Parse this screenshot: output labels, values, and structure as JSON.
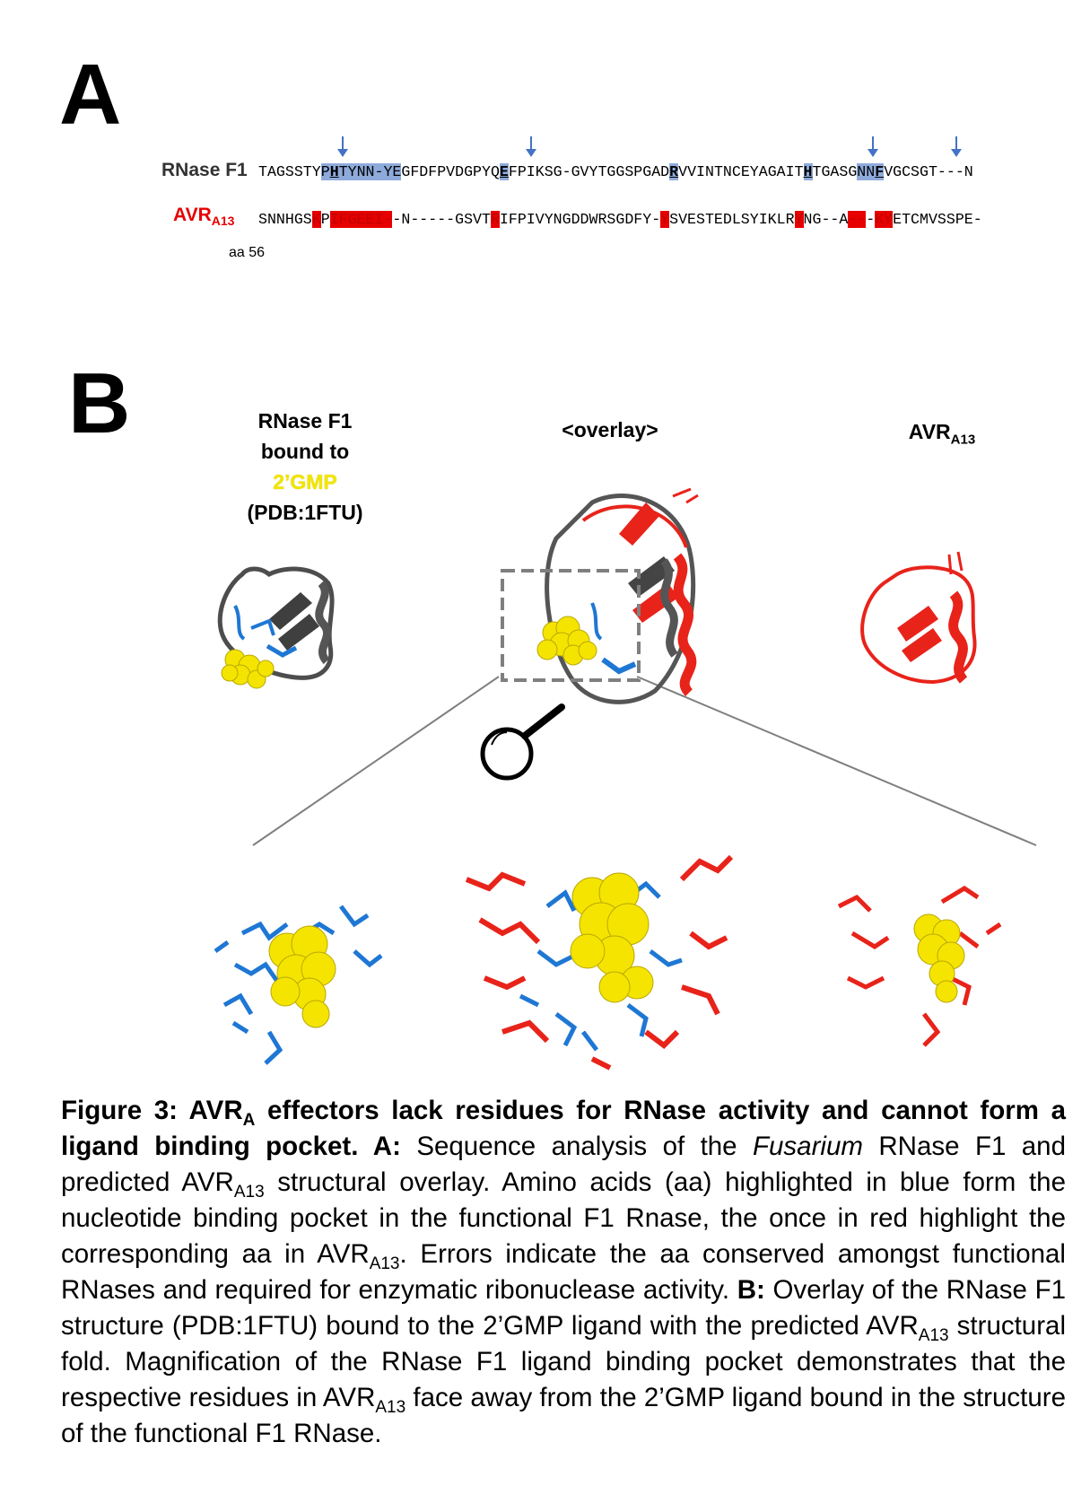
{
  "panel_a": {
    "letter": "A",
    "rows": [
      {
        "name": "RNase F1",
        "name_color": "#333333",
        "segments": [
          {
            "t": "TAGSSTY",
            "s": ""
          },
          {
            "t": "P",
            "s": "b"
          },
          {
            "t": "H",
            "s": "bu"
          },
          {
            "t": "TYNN-YE",
            "s": "b"
          },
          {
            "t": "GFDFPVDGPYQ",
            "s": ""
          },
          {
            "t": "E",
            "s": "bu"
          },
          {
            "t": "FPIKSG-GVYTGGSPGAD",
            "s": ""
          },
          {
            "t": "R",
            "s": "bu"
          },
          {
            "t": "VVINTNCEYAGAIT",
            "s": ""
          },
          {
            "t": "H",
            "s": "bu"
          },
          {
            "t": "TGASG",
            "s": ""
          },
          {
            "t": "NN",
            "s": "b"
          },
          {
            "t": "F",
            "s": "bu"
          },
          {
            "t": "VGCSGT---N",
            "s": ""
          }
        ]
      },
      {
        "name": "AVR",
        "name_sub": "A13",
        "name_color": "#e60000",
        "segments": [
          {
            "t": "SNNHGS",
            "s": ""
          },
          {
            "t": "K",
            "s": "r"
          },
          {
            "t": "P",
            "s": ""
          },
          {
            "t": "IFGEEI-",
            "s": "r"
          },
          {
            "t": "-N-----GSVT",
            "s": ""
          },
          {
            "t": "R",
            "s": "r"
          },
          {
            "t": "IFPIVYNGDDWRSGDFY-",
            "s": ""
          },
          {
            "t": "Y",
            "s": "r"
          },
          {
            "t": "SVESTEDLSYIKLR",
            "s": ""
          },
          {
            "t": "Y",
            "s": "r"
          },
          {
            "t": "NG--A",
            "s": ""
          },
          {
            "t": "--",
            "s": "r"
          },
          {
            "t": "-",
            "s": ""
          },
          {
            "t": "KY",
            "s": "r"
          },
          {
            "t": "ETCMVSSPE-",
            "s": ""
          }
        ]
      }
    ],
    "aa_note": "aa 56",
    "arrow_color": "#4472c4",
    "blue_highlight": "#8eaadb",
    "red_highlight": "#e60000"
  },
  "panel_b": {
    "letter": "B",
    "label_left_1": "RNase F1",
    "label_left_2": "bound to",
    "label_left_3": "2’GMP",
    "label_left_4": "(PDB:1FTU)",
    "label_center": "<overlay>",
    "label_right": "AVR",
    "label_right_sub": "A13"
  },
  "caption": {
    "fig": "Figure 3: AVR",
    "fig_sub": "A",
    "fig_rest": " effectors lack residues for RNase activity and cannot form a ligand binding pocket.",
    "a_label": " A:",
    "a_text1": " Sequence analysis of the ",
    "a_italic": "Fusarium",
    "a_text2": " RNase F1 and predicted AVR",
    "a_sub1": "A13",
    "a_text3": " structural overlay. Amino acids (aa) highlighted in blue form the nucleotide binding pocket in the functional F1 Rnase, the once in red highlight the corresponding aa in AVR",
    "a_sub2": "A13",
    "a_text4": ". Errors indicate the aa conserved amongst functional RNases and required for enzymatic ribonuclease activity.",
    "b_label": " B:",
    "b_text1": " Overlay of the RNase F1 structure (PDB:1FTU) bound to the 2’GMP ligand with the predicted AVR",
    "b_sub1": "A13",
    "b_text2": " structural fold. Magnification of the RNase F1 ligand binding pocket demonstrates that the respective residues in AVR",
    "b_sub2": "A13",
    "b_text3": " face away from the 2’GMP ligand bound in the structure of the functional F1 RNase."
  }
}
